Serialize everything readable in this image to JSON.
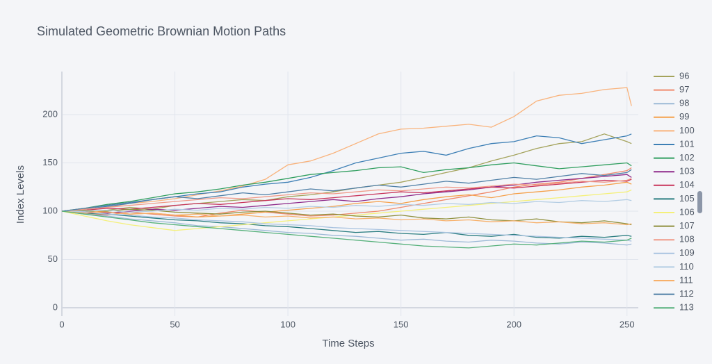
{
  "chart_data": {
    "type": "line",
    "title": "Simulated Geometric Brownian Motion Paths",
    "x_label": "Time Steps",
    "y_label": "Index Levels",
    "x": [
      0,
      10,
      20,
      30,
      40,
      50,
      60,
      70,
      80,
      90,
      100,
      110,
      120,
      130,
      140,
      150,
      160,
      170,
      180,
      190,
      200,
      210,
      220,
      230,
      240,
      250,
      252
    ],
    "xlim": [
      0,
      255
    ],
    "xticks": [
      0,
      50,
      100,
      150,
      200,
      250
    ],
    "ylim": [
      -8.6,
      244.6
    ],
    "yticks": [
      0,
      50,
      100,
      150,
      200
    ],
    "grid": true,
    "legend": "right",
    "series": [
      {
        "name": "96",
        "color": "#a4a35c",
        "values": [
          100,
          99,
          101,
          104,
          102,
          106,
          108,
          110,
          112,
          111,
          115,
          117,
          120,
          124,
          127,
          130,
          135,
          140,
          145,
          152,
          158,
          165,
          170,
          172,
          180,
          172,
          170
        ]
      },
      {
        "name": "97",
        "color": "#f08a6c",
        "values": [
          100,
          98,
          96,
          99,
          97,
          95,
          94,
          98,
          101,
          99,
          97,
          95,
          96,
          98,
          100,
          104,
          108,
          112,
          116,
          120,
          125,
          128,
          130,
          134,
          138,
          142,
          145
        ]
      },
      {
        "name": "98",
        "color": "#9cb9d6",
        "values": [
          100,
          97,
          95,
          92,
          90,
          88,
          85,
          84,
          82,
          80,
          78,
          77,
          75,
          74,
          72,
          70,
          71,
          69,
          68,
          70,
          69,
          67,
          66,
          68,
          67,
          65,
          66
        ]
      },
      {
        "name": "99",
        "color": "#f5a04a",
        "values": [
          100,
          101,
          99,
          97,
          98,
          96,
          94,
          95,
          97,
          99,
          101,
          103,
          105,
          108,
          110,
          108,
          112,
          115,
          117,
          114,
          118,
          120,
          122,
          125,
          127,
          130,
          128
        ]
      },
      {
        "name": "100",
        "color": "#f9b37c",
        "values": [
          100,
          103,
          104,
          108,
          110,
          113,
          117,
          121,
          126,
          133,
          148,
          152,
          160,
          170,
          180,
          185,
          186,
          188,
          190,
          187,
          198,
          214,
          220,
          222,
          226,
          228,
          209
        ]
      },
      {
        "name": "101",
        "color": "#3d7fb5",
        "values": [
          100,
          102,
          105,
          108,
          112,
          115,
          118,
          120,
          125,
          128,
          130,
          135,
          142,
          150,
          155,
          160,
          162,
          158,
          165,
          170,
          172,
          178,
          176,
          170,
          174,
          178,
          180
        ]
      },
      {
        "name": "102",
        "color": "#2f9e5e",
        "values": [
          100,
          103,
          107,
          110,
          114,
          118,
          120,
          123,
          127,
          130,
          134,
          138,
          140,
          142,
          145,
          146,
          140,
          143,
          145,
          148,
          150,
          147,
          144,
          146,
          148,
          150,
          147
        ]
      },
      {
        "name": "103",
        "color": "#8e2a8a",
        "values": [
          100,
          99,
          98,
          100,
          102,
          101,
          103,
          105,
          104,
          106,
          108,
          110,
          112,
          110,
          113,
          115,
          118,
          120,
          122,
          125,
          127,
          130,
          132,
          134,
          136,
          138,
          135
        ]
      },
      {
        "name": "104",
        "color": "#c8345a",
        "values": [
          100,
          101,
          103,
          102,
          104,
          106,
          108,
          107,
          109,
          111,
          113,
          112,
          114,
          116,
          118,
          120,
          119,
          121,
          123,
          125,
          124,
          126,
          128,
          130,
          132,
          131,
          133
        ]
      },
      {
        "name": "105",
        "color": "#2a7d80",
        "values": [
          100,
          98,
          97,
          95,
          93,
          91,
          90,
          88,
          87,
          85,
          84,
          82,
          80,
          78,
          79,
          77,
          76,
          78,
          75,
          74,
          76,
          73,
          72,
          74,
          73,
          75,
          74
        ]
      },
      {
        "name": "106",
        "color": "#f4f07a",
        "values": [
          100,
          95,
          90,
          86,
          83,
          80,
          82,
          84,
          86,
          88,
          90,
          92,
          94,
          96,
          98,
          100,
          102,
          104,
          106,
          108,
          110,
          112,
          114,
          116,
          118,
          120,
          122
        ]
      },
      {
        "name": "107",
        "color": "#8f8f3c",
        "values": [
          100,
          101,
          100,
          102,
          101,
          99,
          98,
          97,
          99,
          100,
          98,
          96,
          97,
          95,
          94,
          96,
          93,
          92,
          94,
          91,
          90,
          92,
          89,
          88,
          90,
          87,
          86
        ]
      },
      {
        "name": "108",
        "color": "#f09a88",
        "values": [
          100,
          102,
          104,
          106,
          108,
          110,
          112,
          114,
          113,
          115,
          117,
          119,
          118,
          120,
          122,
          121,
          123,
          125,
          124,
          126,
          128,
          127,
          129,
          131,
          130,
          132,
          134
        ]
      },
      {
        "name": "109",
        "color": "#a9c3e0",
        "values": [
          100,
          99,
          97,
          96,
          94,
          93,
          91,
          90,
          89,
          87,
          86,
          85,
          83,
          82,
          81,
          80,
          79,
          78,
          77,
          76,
          75,
          74,
          73,
          72,
          71,
          70,
          69
        ]
      },
      {
        "name": "110",
        "color": "#b3cde3",
        "values": [
          100,
          100,
          101,
          99,
          100,
          102,
          101,
          103,
          102,
          104,
          103,
          105,
          104,
          106,
          105,
          107,
          106,
          108,
          107,
          109,
          108,
          110,
          109,
          111,
          110,
          112,
          111
        ]
      },
      {
        "name": "111",
        "color": "#f7b06a",
        "values": [
          100,
          98,
          99,
          97,
          98,
          96,
          97,
          95,
          96,
          94,
          95,
          93,
          94,
          92,
          93,
          91,
          92,
          90,
          91,
          89,
          90,
          88,
          89,
          87,
          88,
          86,
          87
        ]
      },
      {
        "name": "112",
        "color": "#4f7fa6",
        "values": [
          100,
          103,
          106,
          109,
          112,
          115,
          113,
          116,
          119,
          117,
          120,
          123,
          121,
          124,
          127,
          125,
          128,
          131,
          129,
          132,
          135,
          133,
          136,
          139,
          137,
          140,
          143
        ]
      },
      {
        "name": "113",
        "color": "#55b07a",
        "values": [
          100,
          97,
          94,
          91,
          88,
          86,
          84,
          82,
          80,
          78,
          76,
          74,
          72,
          70,
          68,
          66,
          64,
          63,
          62,
          64,
          66,
          65,
          67,
          69,
          68,
          70,
          72
        ]
      }
    ]
  }
}
